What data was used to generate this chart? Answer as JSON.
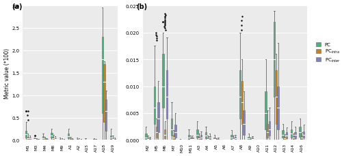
{
  "panel_a_categories": [
    "M1",
    "M3",
    "M4",
    "M8",
    "M9",
    "A1",
    "A2",
    "A15",
    "A17",
    "A18",
    "A19"
  ],
  "panel_b_categories": [
    "M2",
    "M5",
    "M6",
    "M7",
    "M10",
    "M11",
    "A3",
    "A4",
    "A5",
    "A6",
    "A7",
    "A8",
    "A9",
    "A10",
    "A11",
    "A12",
    "A13",
    "A14",
    "A16"
  ],
  "colors": {
    "PC": "#4DAF7E",
    "PC_intra": "#C8821A",
    "PC_inter": "#8080C0"
  },
  "background_color": "#EBEBEB",
  "ylabel_a": "Metric value (*100)",
  "label_a": "(a)",
  "label_b": "(b)",
  "legend_labels": [
    "PC",
    "PC$_{intra}$",
    "PC$_{inter}$"
  ],
  "panel_a_ylim": [
    0,
    3.0
  ],
  "panel_b_ylim": [
    0,
    0.025
  ],
  "a_box_data": {
    "pc_median": [
      0.13,
      0.02,
      0.04,
      0.1,
      0.01,
      0.08,
      0.01,
      0.0,
      0.01,
      1.8,
      0.05
    ],
    "pc_q1": [
      0.05,
      0.01,
      0.02,
      0.05,
      0.0,
      0.03,
      0.0,
      0.0,
      0.0,
      0.6,
      0.02
    ],
    "pc_q3": [
      0.2,
      0.03,
      0.08,
      0.16,
      0.02,
      0.14,
      0.02,
      0.01,
      0.02,
      2.3,
      0.1
    ],
    "pc_whislo": [
      0.0,
      0.0,
      0.0,
      0.0,
      0.0,
      0.0,
      0.0,
      0.0,
      0.0,
      0.0,
      0.0
    ],
    "pc_whishi": [
      0.4,
      0.06,
      0.15,
      0.25,
      0.05,
      0.25,
      0.05,
      0.03,
      0.04,
      2.95,
      0.25
    ],
    "pc_fliers_hi": [
      0.65,
      0.1,
      0.0,
      0.0,
      0.0,
      0.0,
      0.0,
      0.0,
      0.0,
      0.0,
      0.0
    ],
    "intra_median": [
      0.04,
      0.01,
      0.01,
      0.03,
      0.0,
      0.01,
      0.0,
      0.0,
      0.0,
      1.3,
      0.02
    ],
    "intra_q1": [
      0.01,
      0.0,
      0.0,
      0.01,
      0.0,
      0.0,
      0.0,
      0.0,
      0.0,
      0.4,
      0.0
    ],
    "intra_q3": [
      0.07,
      0.02,
      0.03,
      0.06,
      0.01,
      0.03,
      0.01,
      0.0,
      0.01,
      1.7,
      0.04
    ],
    "intra_whislo": [
      0.0,
      0.0,
      0.0,
      0.0,
      0.0,
      0.0,
      0.0,
      0.0,
      0.0,
      0.0,
      0.0
    ],
    "intra_whishi": [
      0.15,
      0.04,
      0.07,
      0.12,
      0.03,
      0.07,
      0.03,
      0.01,
      0.02,
      1.75,
      0.1
    ],
    "intra_fliers_hi": [
      0.0,
      0.0,
      0.0,
      0.0,
      0.0,
      0.0,
      0.0,
      0.0,
      0.0,
      0.0,
      0.0
    ],
    "inter_median": [
      0.03,
      0.0,
      0.01,
      0.02,
      0.0,
      0.01,
      0.0,
      0.0,
      0.0,
      0.65,
      0.01
    ],
    "inter_q1": [
      0.01,
      0.0,
      0.0,
      0.01,
      0.0,
      0.0,
      0.0,
      0.0,
      0.0,
      0.2,
      0.0
    ],
    "inter_q3": [
      0.05,
      0.01,
      0.02,
      0.04,
      0.01,
      0.02,
      0.01,
      0.0,
      0.0,
      0.9,
      0.02
    ],
    "inter_whislo": [
      0.0,
      0.0,
      0.0,
      0.0,
      0.0,
      0.0,
      0.0,
      0.0,
      0.0,
      0.0,
      0.0
    ],
    "inter_whishi": [
      0.1,
      0.02,
      0.04,
      0.08,
      0.02,
      0.04,
      0.02,
      0.01,
      0.01,
      1.1,
      0.05
    ],
    "inter_fliers_hi": [
      0.0,
      0.0,
      0.0,
      0.0,
      0.0,
      0.0,
      0.0,
      0.0,
      0.0,
      0.0,
      0.0
    ]
  },
  "b_box_data": {
    "pc_median": [
      0.0005,
      0.006,
      0.01,
      0.002,
      0.0,
      0.0005,
      0.001,
      0.0008,
      0.0002,
      0.0,
      0.0004,
      0.008,
      0.0003,
      0.0,
      0.005,
      0.015,
      0.001,
      0.0012,
      0.0015
    ],
    "pc_q1": [
      0.0001,
      0.003,
      0.006,
      0.0008,
      0.0,
      0.0002,
      0.0004,
      0.0003,
      0.0001,
      0.0,
      0.0001,
      0.004,
      0.0001,
      0.0,
      0.002,
      0.008,
      0.0004,
      0.0005,
      0.0006
    ],
    "pc_q3": [
      0.0012,
      0.01,
      0.016,
      0.004,
      0.0001,
      0.001,
      0.002,
      0.0015,
      0.0005,
      0.0001,
      0.001,
      0.013,
      0.0006,
      0.0001,
      0.009,
      0.022,
      0.0018,
      0.002,
      0.0025
    ],
    "pc_whislo": [
      0.0,
      0.0,
      0.0,
      0.0,
      0.0,
      0.0,
      0.0,
      0.0,
      0.0,
      0.0,
      0.0,
      0.0,
      0.0,
      0.0,
      0.0,
      0.0,
      0.0,
      0.0,
      0.0
    ],
    "pc_whishi": [
      0.0025,
      0.0175,
      0.02,
      0.007,
      0.0002,
      0.002,
      0.0035,
      0.0025,
      0.0009,
      0.0001,
      0.0018,
      0.02,
      0.0012,
      0.0001,
      0.015,
      0.024,
      0.003,
      0.0035,
      0.004
    ],
    "pc_fliers_hi": [
      0.0,
      0.0,
      0.022,
      0.0,
      0.0,
      0.0,
      0.0,
      0.0,
      0.0,
      0.0,
      0.0,
      0.0,
      0.0,
      0.0,
      0.0,
      0.0,
      0.0,
      0.0,
      0.0
    ],
    "intra_median": [
      0.0002,
      0.0015,
      0.001,
      0.0005,
      0.0,
      0.0002,
      0.0003,
      0.0002,
      0.0001,
      0.0,
      0.0002,
      0.007,
      0.0001,
      0.0,
      0.0015,
      0.008,
      0.0003,
      0.0004,
      0.0004
    ],
    "intra_q1": [
      0.0,
      0.0005,
      0.0003,
      0.0001,
      0.0,
      0.0001,
      0.0001,
      0.0001,
      0.0,
      0.0,
      0.0001,
      0.003,
      0.0,
      0.0,
      0.0005,
      0.003,
      0.0001,
      0.0001,
      0.0001
    ],
    "intra_q3": [
      0.0004,
      0.0025,
      0.002,
      0.001,
      0.0,
      0.0004,
      0.0006,
      0.0004,
      0.0002,
      0.0,
      0.0004,
      0.011,
      0.0002,
      0.0,
      0.003,
      0.013,
      0.0006,
      0.0007,
      0.0008
    ],
    "intra_whislo": [
      0.0,
      0.0,
      0.0,
      0.0,
      0.0,
      0.0,
      0.0,
      0.0,
      0.0,
      0.0,
      0.0,
      0.0,
      0.0,
      0.0,
      0.0,
      0.0,
      0.0,
      0.0,
      0.0
    ],
    "intra_whishi": [
      0.0008,
      0.004,
      0.0035,
      0.0018,
      0.0001,
      0.0008,
      0.0012,
      0.0008,
      0.0003,
      0.0,
      0.0008,
      0.015,
      0.0004,
      0.0001,
      0.0055,
      0.016,
      0.0011,
      0.0012,
      0.0014
    ],
    "intra_fliers_hi": [
      0.0,
      0.0,
      0.0,
      0.0,
      0.0,
      0.0,
      0.0,
      0.0,
      0.0,
      0.0,
      0.0,
      0.0,
      0.0,
      0.0,
      0.0,
      0.0,
      0.0,
      0.0,
      0.0
    ],
    "inter_median": [
      0.0001,
      0.004,
      0.008,
      0.0015,
      0.0,
      0.0002,
      0.0005,
      0.0004,
      0.0001,
      0.0,
      0.0003,
      0.003,
      0.0002,
      0.0,
      0.002,
      0.006,
      0.0008,
      0.0009,
      0.001
    ],
    "inter_q1": [
      0.0,
      0.0015,
      0.004,
      0.0005,
      0.0,
      0.0001,
      0.0002,
      0.0002,
      0.0,
      0.0,
      0.0001,
      0.001,
      0.0001,
      0.0,
      0.0008,
      0.002,
      0.0003,
      0.0003,
      0.0004
    ],
    "inter_q3": [
      0.0003,
      0.007,
      0.013,
      0.0028,
      0.0,
      0.0004,
      0.0009,
      0.0007,
      0.0002,
      0.0,
      0.0006,
      0.0055,
      0.0004,
      0.0,
      0.0035,
      0.01,
      0.0014,
      0.0015,
      0.0016
    ],
    "inter_whislo": [
      0.0,
      0.0,
      0.0,
      0.0,
      0.0,
      0.0,
      0.0,
      0.0,
      0.0,
      0.0,
      0.0,
      0.0,
      0.0,
      0.0,
      0.0,
      0.0,
      0.0,
      0.0,
      0.0
    ],
    "inter_whishi": [
      0.0006,
      0.011,
      0.019,
      0.005,
      0.0001,
      0.0008,
      0.0016,
      0.0012,
      0.0004,
      0.0,
      0.001,
      0.009,
      0.0007,
      0.0001,
      0.006,
      0.018,
      0.0024,
      0.0025,
      0.0028
    ],
    "inter_fliers_hi": [
      0.0,
      0.0,
      0.0,
      0.0,
      0.0,
      0.0,
      0.0,
      0.0,
      0.0,
      0.0,
      0.0,
      0.0,
      0.0,
      0.0,
      0.0,
      0.0,
      0.0,
      0.0,
      0.0
    ]
  }
}
